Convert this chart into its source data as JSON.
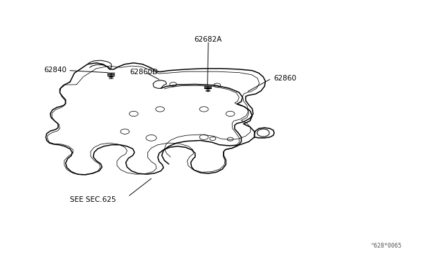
{
  "background_color": "#ffffff",
  "line_color": "#000000",
  "label_62840": "62840",
  "label_62860D": "62860D",
  "label_62682A": "62682A",
  "label_62860": "62860",
  "label_sec": "SEE SEC.625",
  "watermark": "^628*0065",
  "fig_width": 6.4,
  "fig_height": 3.72
}
